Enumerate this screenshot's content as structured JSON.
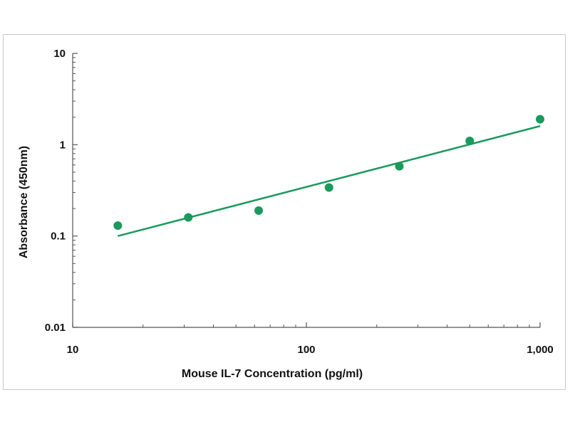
{
  "chart_data": {
    "type": "scatter",
    "title": "",
    "xlabel": "Mouse IL-7 Concentration (pg/ml)",
    "ylabel": "Absorbance (450nm)",
    "x_scale": "log",
    "y_scale": "log",
    "xlim": [
      10,
      1000
    ],
    "ylim": [
      0.01,
      10
    ],
    "x_ticks": [
      10,
      100,
      1000
    ],
    "x_tick_labels": [
      "10",
      "100",
      "1,000"
    ],
    "y_ticks": [
      0.01,
      0.1,
      1,
      10
    ],
    "y_tick_labels": [
      "0.01",
      "0.1",
      "1",
      "10"
    ],
    "grid": false,
    "legend": "none",
    "series": [
      {
        "x": [
          15.6,
          31.25,
          62.5,
          125,
          250,
          500,
          1000
        ],
        "y": [
          0.13,
          0.16,
          0.19,
          0.34,
          0.58,
          1.1,
          1.9
        ]
      }
    ],
    "fit_line": {
      "x": [
        15.6,
        1000
      ],
      "y": [
        0.1,
        1.6
      ]
    },
    "colors": {
      "points": "#1a9a5c",
      "line": "#1a9a5c",
      "axis": "#555555"
    }
  }
}
